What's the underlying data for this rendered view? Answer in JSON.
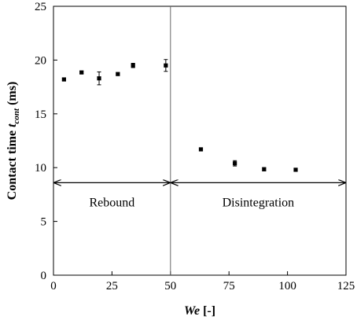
{
  "chart_data": {
    "type": "scatter",
    "title": "",
    "xlabel": {
      "main": "We",
      "unit": " [-]"
    },
    "ylabel": {
      "main": "Contact time ",
      "symbol": "t",
      "subscript": "cont",
      "unit": " (ms)"
    },
    "xlim": [
      0,
      125
    ],
    "ylim": [
      0,
      25
    ],
    "xticks": [
      0,
      25,
      50,
      75,
      100,
      125
    ],
    "yticks": [
      0,
      5,
      10,
      15,
      20,
      25
    ],
    "grid": false,
    "series": [
      {
        "points": [
          {
            "x": 4.5,
            "y": 18.2,
            "err": 0.1
          },
          {
            "x": 12,
            "y": 18.85,
            "err": 0.1
          },
          {
            "x": 19.5,
            "y": 18.3,
            "err": 0.6
          },
          {
            "x": 27.5,
            "y": 18.7,
            "err": 0.1
          },
          {
            "x": 34,
            "y": 19.5,
            "err": 0.2
          },
          {
            "x": 48,
            "y": 19.5,
            "err": 0.55
          },
          {
            "x": 63,
            "y": 11.7,
            "err": 0.1
          },
          {
            "x": 77.5,
            "y": 10.4,
            "err": 0.25
          },
          {
            "x": 90,
            "y": 9.85,
            "err": 0.15
          },
          {
            "x": 103.5,
            "y": 9.8,
            "err": 0.1
          }
        ]
      }
    ],
    "divider_x": 50,
    "regions": [
      {
        "label": "Rebound",
        "x_start": 0,
        "x_end": 50,
        "y": 8.6
      },
      {
        "label": "Disintegration",
        "x_start": 50,
        "x_end": 125,
        "y": 8.6
      }
    ]
  }
}
